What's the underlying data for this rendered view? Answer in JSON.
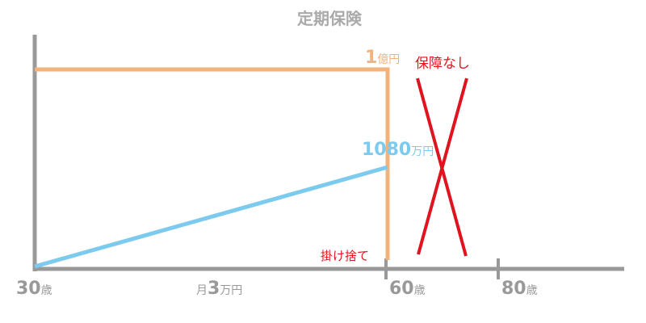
{
  "title": "定期保険",
  "labels": {
    "coverage": {
      "number": "1",
      "unit": "億円"
    },
    "no_coverage": "保障なし",
    "premium_total": {
      "number": "1080",
      "unit": "万円"
    },
    "disposable": "掛け捨て"
  },
  "axis": {
    "start": {
      "number": "30",
      "unit": "歳"
    },
    "premium": {
      "prefix": "月",
      "number": "3",
      "unit": "万円"
    },
    "end": {
      "number": "60",
      "unit": "歳"
    },
    "later": {
      "number": "80",
      "unit": "歳"
    }
  }
}
